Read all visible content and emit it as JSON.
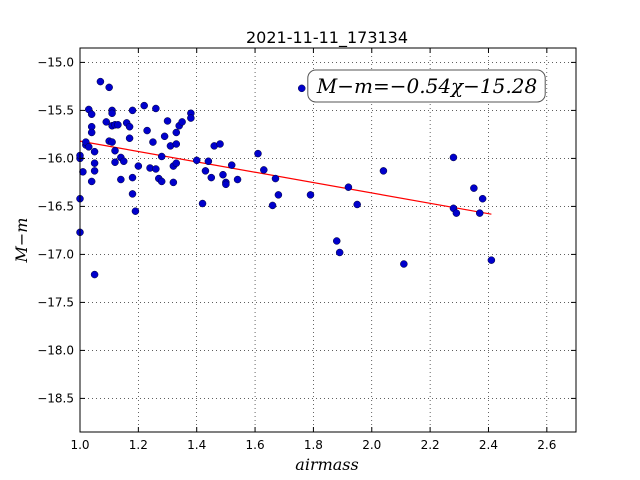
{
  "chart_data": {
    "type": "scatter",
    "title": "2021-11-11_173134",
    "xlabel": "airmass",
    "ylabel": "M−m",
    "xlim": [
      1.0,
      2.7
    ],
    "ylim": [
      -18.85,
      -14.85
    ],
    "y_inverted": true,
    "grid": true,
    "x_ticks": [
      1.0,
      1.2,
      1.4,
      1.6,
      1.8,
      2.0,
      2.2,
      2.4,
      2.6
    ],
    "x_tick_labels": [
      "1.0",
      "1.2",
      "1.4",
      "1.6",
      "1.8",
      "2.0",
      "2.2",
      "2.4",
      "2.6"
    ],
    "y_ticks": [
      -15.0,
      -15.5,
      -16.0,
      -16.5,
      -17.0,
      -17.5,
      -18.0,
      -18.5
    ],
    "y_tick_labels": [
      "−15.0",
      "−15.5",
      "−16.0",
      "−16.5",
      "−17.0",
      "−17.5",
      "−18.0",
      "−18.5"
    ],
    "annotation": "M−m=−0.54χ−15.28",
    "annotation_position": "top-right",
    "fit": {
      "slope": -0.54,
      "intercept": -15.28,
      "x_range": [
        1.0,
        2.41
      ],
      "color": "#ff0000"
    },
    "marker_color": "#0000cc",
    "points": [
      [
        1.0,
        -16.77
      ],
      [
        1.0,
        -16.42
      ],
      [
        1.0,
        -16.0
      ],
      [
        1.0,
        -15.97
      ],
      [
        1.01,
        -16.14
      ],
      [
        1.02,
        -15.86
      ],
      [
        1.02,
        -15.83
      ],
      [
        1.03,
        -15.88
      ],
      [
        1.03,
        -15.49
      ],
      [
        1.04,
        -15.67
      ],
      [
        1.04,
        -15.73
      ],
      [
        1.04,
        -15.54
      ],
      [
        1.04,
        -16.24
      ],
      [
        1.05,
        -16.13
      ],
      [
        1.05,
        -16.05
      ],
      [
        1.05,
        -15.93
      ],
      [
        1.05,
        -17.21
      ],
      [
        1.07,
        -15.2
      ],
      [
        1.09,
        -15.62
      ],
      [
        1.1,
        -15.82
      ],
      [
        1.1,
        -15.26
      ],
      [
        1.11,
        -15.5
      ],
      [
        1.11,
        -15.53
      ],
      [
        1.11,
        -15.66
      ],
      [
        1.11,
        -15.83
      ],
      [
        1.12,
        -15.92
      ],
      [
        1.12,
        -16.04
      ],
      [
        1.12,
        -15.65
      ],
      [
        1.13,
        -15.65
      ],
      [
        1.14,
        -15.99
      ],
      [
        1.14,
        -16.22
      ],
      [
        1.15,
        -16.03
      ],
      [
        1.16,
        -15.63
      ],
      [
        1.17,
        -15.67
      ],
      [
        1.17,
        -15.79
      ],
      [
        1.18,
        -15.5
      ],
      [
        1.18,
        -16.2
      ],
      [
        1.18,
        -16.37
      ],
      [
        1.19,
        -16.55
      ],
      [
        1.2,
        -16.08
      ],
      [
        1.22,
        -15.45
      ],
      [
        1.23,
        -15.71
      ],
      [
        1.24,
        -16.1
      ],
      [
        1.25,
        -15.83
      ],
      [
        1.26,
        -15.48
      ],
      [
        1.26,
        -16.11
      ],
      [
        1.27,
        -16.21
      ],
      [
        1.28,
        -16.24
      ],
      [
        1.28,
        -15.98
      ],
      [
        1.29,
        -15.77
      ],
      [
        1.3,
        -15.61
      ],
      [
        1.31,
        -15.87
      ],
      [
        1.32,
        -16.08
      ],
      [
        1.32,
        -16.25
      ],
      [
        1.33,
        -15.85
      ],
      [
        1.33,
        -16.05
      ],
      [
        1.33,
        -15.73
      ],
      [
        1.34,
        -15.66
      ],
      [
        1.35,
        -15.62
      ],
      [
        1.38,
        -15.53
      ],
      [
        1.38,
        -15.58
      ],
      [
        1.4,
        -16.02
      ],
      [
        1.42,
        -16.47
      ],
      [
        1.43,
        -16.13
      ],
      [
        1.44,
        -16.03
      ],
      [
        1.45,
        -16.2
      ],
      [
        1.46,
        -15.87
      ],
      [
        1.48,
        -15.85
      ],
      [
        1.49,
        -16.17
      ],
      [
        1.5,
        -16.25
      ],
      [
        1.5,
        -16.27
      ],
      [
        1.52,
        -16.07
      ],
      [
        1.54,
        -16.22
      ],
      [
        1.61,
        -15.95
      ],
      [
        1.63,
        -16.12
      ],
      [
        1.66,
        -16.49
      ],
      [
        1.67,
        -16.21
      ],
      [
        1.68,
        -16.38
      ],
      [
        1.76,
        -15.27
      ],
      [
        1.79,
        -16.38
      ],
      [
        1.88,
        -16.86
      ],
      [
        1.89,
        -16.98
      ],
      [
        1.92,
        -16.3
      ],
      [
        1.95,
        -16.48
      ],
      [
        2.04,
        -16.13
      ],
      [
        2.11,
        -17.1
      ],
      [
        2.28,
        -15.99
      ],
      [
        2.28,
        -16.52
      ],
      [
        2.29,
        -16.57
      ],
      [
        2.35,
        -16.31
      ],
      [
        2.37,
        -16.57
      ],
      [
        2.38,
        -16.42
      ],
      [
        2.41,
        -17.06
      ]
    ]
  }
}
